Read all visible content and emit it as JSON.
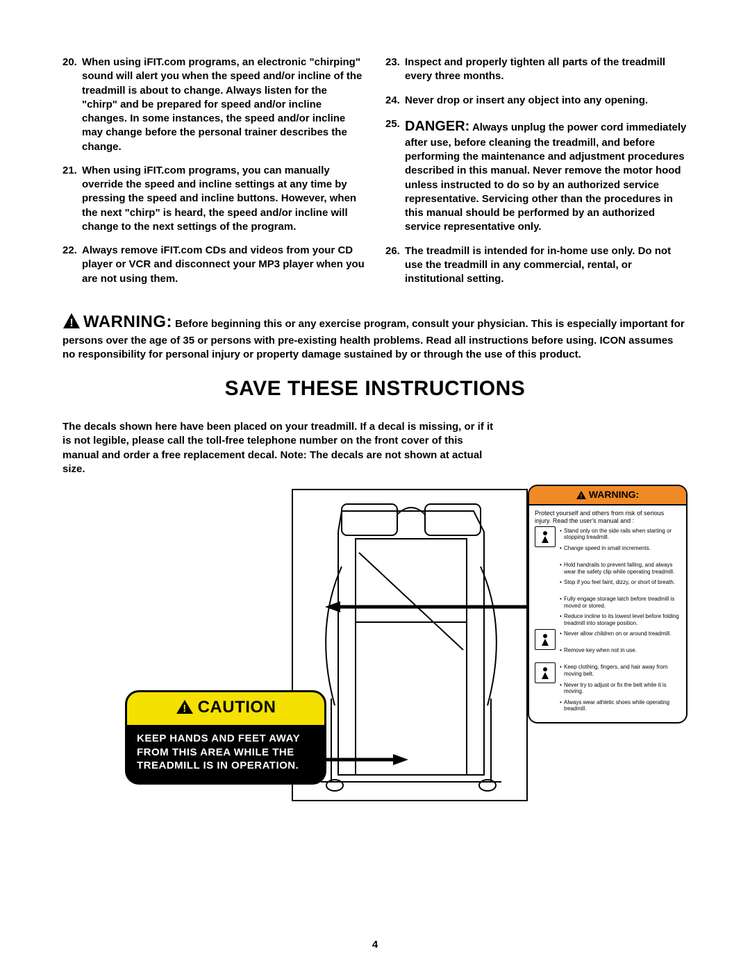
{
  "colors": {
    "text": "#000000",
    "bg": "#ffffff",
    "caution_yellow": "#f5e100",
    "warning_orange": "#f08a24"
  },
  "left_items": [
    {
      "num": "20.",
      "text": "When using iFIT.com programs, an electronic \"chirping\" sound will alert you when the speed and/or incline of the treadmill is about to change. Always listen for the \"chirp\" and be prepared for speed and/or incline changes. In some instances, the speed and/or incline may change before the personal trainer describes the change."
    },
    {
      "num": "21.",
      "text": "When using iFIT.com programs, you can manually override the speed and incline settings at any time by pressing the speed and incline buttons. However, when the next \"chirp\" is heard, the speed and/or incline will change to the next settings of the program."
    },
    {
      "num": "22.",
      "text": "Always remove iFIT.com CDs and videos from your CD player or VCR and disconnect your MP3 player when you are not using them."
    }
  ],
  "right_items": [
    {
      "num": "23.",
      "text": "Inspect and properly tighten all parts of the treadmill every three months."
    },
    {
      "num": "24.",
      "text": "Never drop or insert any object into any opening."
    },
    {
      "num": "25.",
      "prefix": "DANGER:",
      "text": " Always unplug the power cord immediately after use, before cleaning the treadmill, and before performing the maintenance and adjustment procedures described in this manual. Never remove the motor hood unless instructed to do so by an authorized service representative. Servicing other than the procedures in this manual should be performed by an authorized service representative only."
    },
    {
      "num": "26.",
      "text": "The treadmill is intended for in-home use only. Do not use the treadmill in any commercial, rental, or institutional setting."
    }
  ],
  "warning": {
    "label": "WARNING:",
    "text": " Before beginning this or any exercise program, consult your physician. This is especially important for persons over the age of 35 or persons with pre-existing health problems. Read all instructions before using. ICON assumes no responsibility for personal injury or property damage sustained by or through the use of this product."
  },
  "save_heading": "SAVE THESE INSTRUCTIONS",
  "decal_intro": "The decals shown here have been placed on your treadmill. If a decal is missing, or if it is not legible, please call the toll-free telephone number on the front cover of this manual and order a free replacement decal. Note: The decals are not shown at actual size.",
  "caution_decal": {
    "header": "CAUTION",
    "body": "KEEP HANDS AND FEET AWAY FROM THIS AREA WHILE THE TREADMILL IS IN OPERATION."
  },
  "warning_decal": {
    "header": "WARNING:",
    "intro": "Protect yourself and others from risk of serious injury.  Read the user's manual and :",
    "bullets": [
      {
        "icon": true,
        "text": "Stand only on the side rails when starting or stopping treadmill."
      },
      {
        "icon": false,
        "text": "Change speed in small increments."
      },
      {
        "icon": false,
        "text": "Hold handrails to prevent falling, and always wear the safety clip while operating treadmill."
      },
      {
        "icon": false,
        "text": "Stop if you feel faint, dizzy, or short of breath."
      },
      {
        "icon": false,
        "text": "Fully engage storage latch  before treadmill  is moved or stored."
      },
      {
        "icon": false,
        "text": "Reduce incline to its lowest level before folding treadmill into storage position."
      },
      {
        "icon": true,
        "text": "Never allow children on or around treadmill."
      },
      {
        "icon": false,
        "text": "Remove key when not in use."
      },
      {
        "icon": true,
        "text": "Keep clothing, fingers, and hair away from moving belt."
      },
      {
        "icon": false,
        "text": "Never try to adjust or fix the belt while it is moving."
      },
      {
        "icon": false,
        "text": "Always wear athletic shoes while operating treadmill."
      }
    ]
  },
  "page_number": "4"
}
